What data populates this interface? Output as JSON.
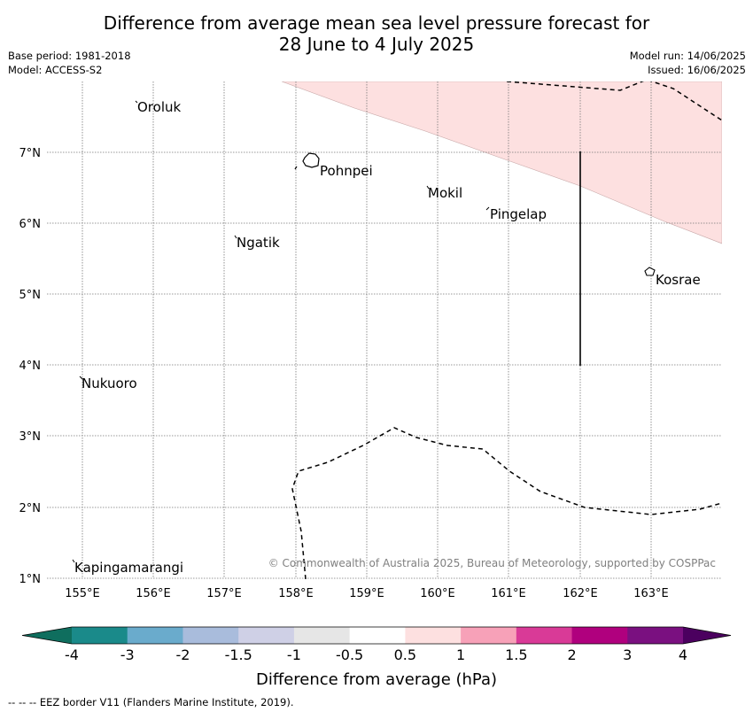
{
  "title": {
    "line1": "Difference from average mean sea level pressure forecast for",
    "line2": "28 June to 4 July 2025"
  },
  "meta": {
    "base_period": "Base period: 1981-2018",
    "model": "Model: ACCESS-S2",
    "model_run": "Model run: 14/06/2025",
    "issued": "Issued: 16/06/2025"
  },
  "axes": {
    "lon_labels": [
      "155°E",
      "156°E",
      "157°E",
      "158°E",
      "159°E",
      "160°E",
      "161°E",
      "162°E",
      "163°E"
    ],
    "lat_labels": [
      "7°N",
      "6°N",
      "5°N",
      "4°N",
      "3°N",
      "2°N",
      "1°N"
    ]
  },
  "places": [
    "Oroluk",
    "Pohnpei",
    "Mokil",
    "Pingelap",
    "Ngatik",
    "Kosrae",
    "Nukuoro",
    "Kapingamarangi"
  ],
  "copyright": "© Commonwealth of Australia 2025, Bureau of Meteorology, supported by COSPPac",
  "colorbar": {
    "labels": [
      "-4",
      "-3",
      "-2",
      "-1.5",
      "-1",
      "-0.5",
      "0.5",
      "1",
      "1.5",
      "2",
      "3",
      "4"
    ],
    "colors": [
      "#1a8a8a",
      "#6aabcc",
      "#a9bcdc",
      "#cfd0e6",
      "#e6e6e6",
      "#ffffff",
      "#fde0e0",
      "#f7a1b8",
      "#d93a97",
      "#b0007e",
      "#7a1080"
    ],
    "under_color": "#0f6e5e",
    "over_color": "#4b005f",
    "label": "Difference from average (hPa)"
  },
  "footer": "--  --  -- EEZ border V11 (Flanders Marine Institute, 2019).",
  "colors": {
    "positive_shading": "#fde0e0",
    "grid": "#777777"
  }
}
